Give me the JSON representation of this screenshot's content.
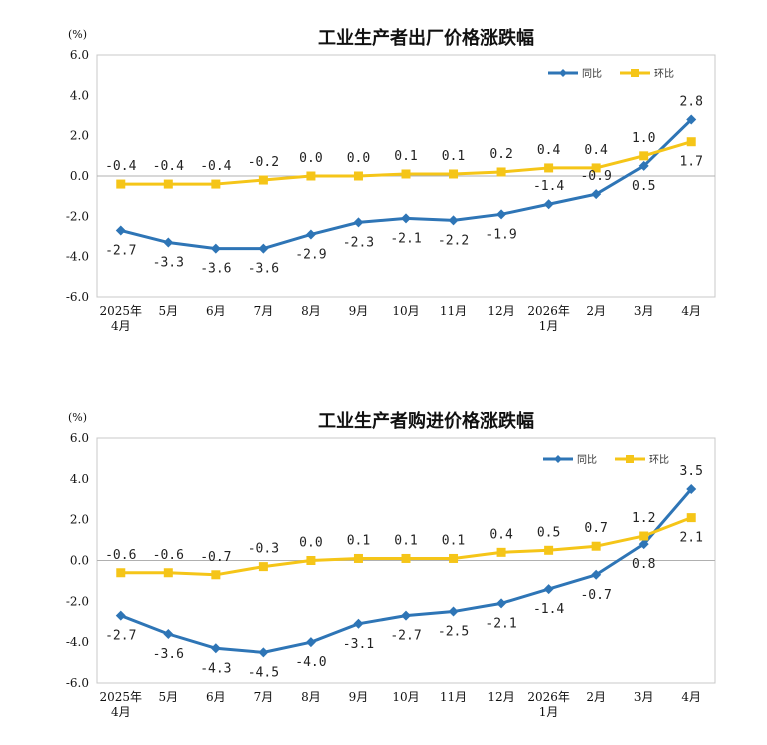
{
  "chart_data": [
    {
      "type": "line",
      "title": "工业生产者出厂价格涨跌幅",
      "unit": "(%)",
      "ylim": [
        -6.0,
        6.0
      ],
      "yticks": [
        "6.0",
        "4.0",
        "2.0",
        "0.0",
        "-2.0",
        "-4.0",
        "-6.0"
      ],
      "categories": [
        [
          "2025年",
          "4月"
        ],
        [
          "5月"
        ],
        [
          "6月"
        ],
        [
          "7月"
        ],
        [
          "8月"
        ],
        [
          "9月"
        ],
        [
          "10月"
        ],
        [
          "11月"
        ],
        [
          "12月"
        ],
        [
          "2026年",
          "1月"
        ],
        [
          "2月"
        ],
        [
          "3月"
        ],
        [
          "4月"
        ]
      ],
      "series": [
        {
          "name": "同比",
          "color": "#2E75B6",
          "marker": "diamond",
          "values": [
            -2.7,
            -3.3,
            -3.6,
            -3.6,
            -2.9,
            -2.3,
            -2.1,
            -2.2,
            -1.9,
            -1.4,
            -0.9,
            0.5,
            2.8
          ],
          "labels": [
            "-2.7",
            "-3.3",
            "-3.6",
            "-3.6",
            "-2.9",
            "-2.3",
            "-2.1",
            "-2.2",
            "-1.9",
            "-1.4",
            "-0.9",
            "0.5",
            "2.8"
          ]
        },
        {
          "name": "环比",
          "color": "#F5C518",
          "marker": "square",
          "values": [
            -0.4,
            -0.4,
            -0.4,
            -0.2,
            0.0,
            0.0,
            0.1,
            0.1,
            0.2,
            0.4,
            0.4,
            1.0,
            1.7
          ],
          "labels": [
            "-0.4",
            "-0.4",
            "-0.4",
            "-0.2",
            "0.0",
            "0.0",
            "0.1",
            "0.1",
            "0.2",
            "0.4",
            "0.4",
            "1.0",
            "1.7"
          ]
        }
      ],
      "legend": "top-right",
      "grid": false
    },
    {
      "type": "line",
      "title": "工业生产者购进价格涨跌幅",
      "unit": "(%)",
      "ylim": [
        -6.0,
        6.0
      ],
      "yticks": [
        "6.0",
        "4.0",
        "2.0",
        "0.0",
        "-2.0",
        "-4.0",
        "-6.0"
      ],
      "categories": [
        [
          "2025年",
          "4月"
        ],
        [
          "5月"
        ],
        [
          "6月"
        ],
        [
          "7月"
        ],
        [
          "8月"
        ],
        [
          "9月"
        ],
        [
          "10月"
        ],
        [
          "11月"
        ],
        [
          "12月"
        ],
        [
          "2026年",
          "1月"
        ],
        [
          "2月"
        ],
        [
          "3月"
        ],
        [
          "4月"
        ]
      ],
      "series": [
        {
          "name": "同比",
          "color": "#2E75B6",
          "marker": "diamond",
          "values": [
            -2.7,
            -3.6,
            -4.3,
            -4.5,
            -4.0,
            -3.1,
            -2.7,
            -2.5,
            -2.1,
            -1.4,
            -0.7,
            0.8,
            3.5
          ],
          "labels": [
            "-2.7",
            "-3.6",
            "-4.3",
            "-4.5",
            "-4.0",
            "-3.1",
            "-2.7",
            "-2.5",
            "-2.1",
            "-1.4",
            "-0.7",
            "0.8",
            "3.5"
          ]
        },
        {
          "name": "环比",
          "color": "#F5C518",
          "marker": "square",
          "values": [
            -0.6,
            -0.6,
            -0.7,
            -0.3,
            0.0,
            0.1,
            0.1,
            0.1,
            0.4,
            0.5,
            0.7,
            1.2,
            2.1
          ],
          "labels": [
            "-0.6",
            "-0.6",
            "-0.7",
            "-0.3",
            "0.0",
            "0.1",
            "0.1",
            "0.1",
            "0.4",
            "0.5",
            "0.7",
            "1.2",
            "2.1"
          ]
        }
      ],
      "legend": "top-right",
      "grid": false
    }
  ]
}
